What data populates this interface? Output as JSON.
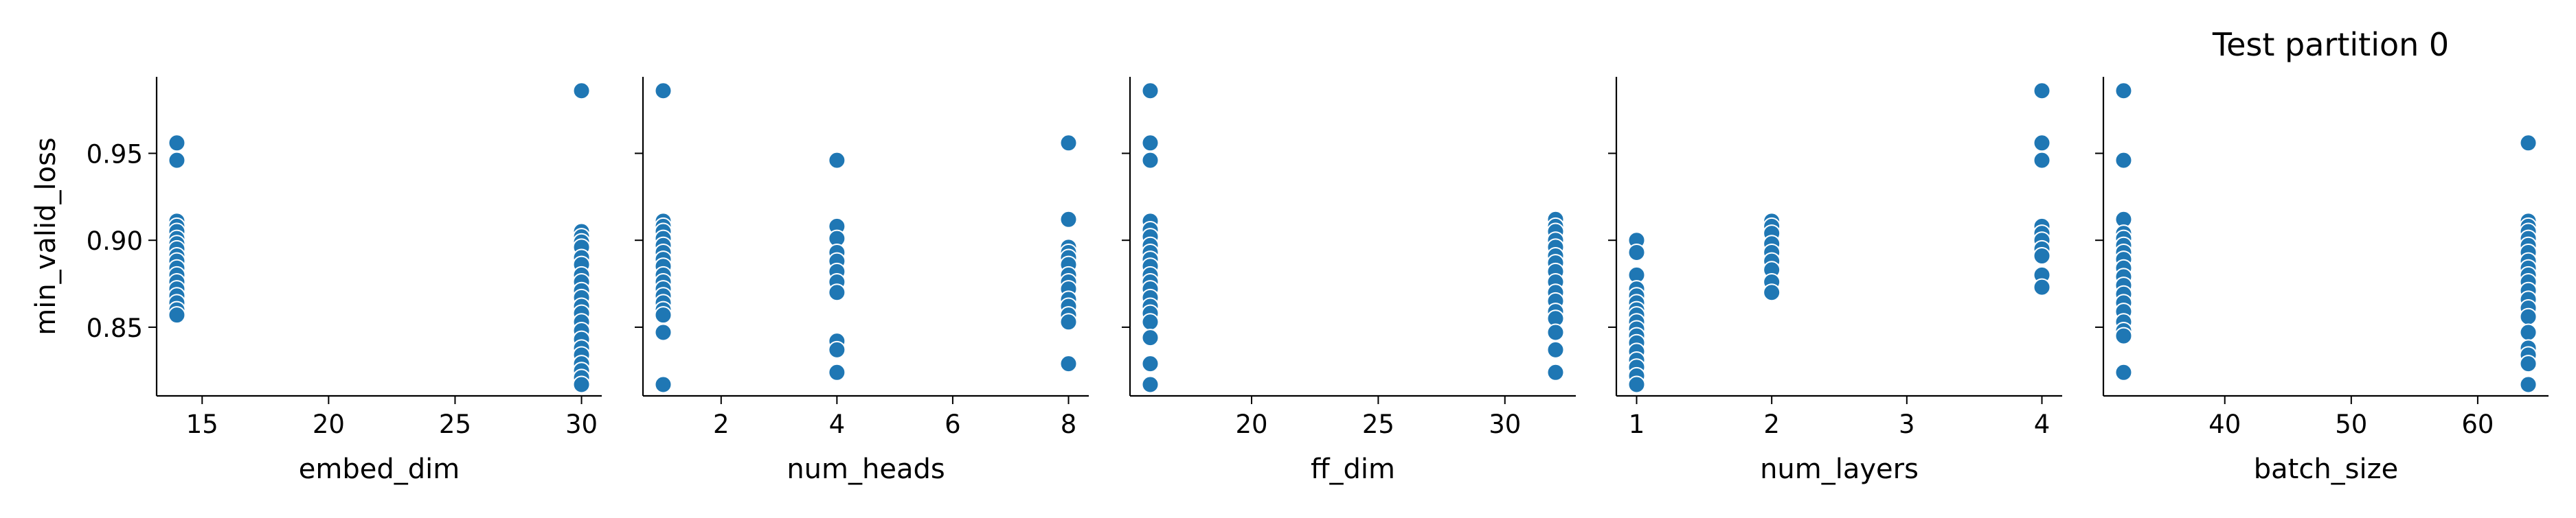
{
  "figure": {
    "title": "Test partition 0",
    "marker_color": "#1f77b4",
    "marker_edge_color": "#ffffff"
  },
  "chart_data": [
    {
      "type": "scatter",
      "xlabel": "embed_dim",
      "ylabel": "min_valid_loss",
      "xlim": [
        13.2,
        30.8
      ],
      "ylim": [
        0.8105,
        0.994
      ],
      "xticks": [
        15,
        20,
        25,
        30
      ],
      "yticks": [
        0.85,
        0.9,
        0.95
      ],
      "points": [
        [
          14,
          0.956
        ],
        [
          14,
          0.946
        ],
        [
          14,
          0.911
        ],
        [
          14,
          0.908
        ],
        [
          14,
          0.905
        ],
        [
          14,
          0.901
        ],
        [
          14,
          0.898
        ],
        [
          14,
          0.895
        ],
        [
          14,
          0.891
        ],
        [
          14,
          0.888
        ],
        [
          14,
          0.884
        ],
        [
          14,
          0.88
        ],
        [
          14,
          0.876
        ],
        [
          14,
          0.872
        ],
        [
          14,
          0.868
        ],
        [
          14,
          0.864
        ],
        [
          14,
          0.86
        ],
        [
          14,
          0.857
        ],
        [
          30,
          0.986
        ],
        [
          30,
          0.905
        ],
        [
          30,
          0.902
        ],
        [
          30,
          0.899
        ],
        [
          30,
          0.896
        ],
        [
          30,
          0.89
        ],
        [
          30,
          0.886
        ],
        [
          30,
          0.88
        ],
        [
          30,
          0.876
        ],
        [
          30,
          0.871
        ],
        [
          30,
          0.867
        ],
        [
          30,
          0.862
        ],
        [
          30,
          0.858
        ],
        [
          30,
          0.853
        ],
        [
          30,
          0.848
        ],
        [
          30,
          0.843
        ],
        [
          30,
          0.838
        ],
        [
          30,
          0.834
        ],
        [
          30,
          0.829
        ],
        [
          30,
          0.825
        ],
        [
          30,
          0.821
        ],
        [
          30,
          0.817
        ]
      ]
    },
    {
      "type": "scatter",
      "xlabel": "num_heads",
      "ylabel": "",
      "xlim": [
        0.65,
        8.35
      ],
      "ylim": [
        0.8105,
        0.994
      ],
      "xticks": [
        2,
        4,
        6,
        8
      ],
      "yticks": [
        0.85,
        0.9,
        0.95
      ],
      "points": [
        [
          1,
          0.986
        ],
        [
          1,
          0.911
        ],
        [
          1,
          0.908
        ],
        [
          1,
          0.905
        ],
        [
          1,
          0.901
        ],
        [
          1,
          0.897
        ],
        [
          1,
          0.893
        ],
        [
          1,
          0.889
        ],
        [
          1,
          0.885
        ],
        [
          1,
          0.88
        ],
        [
          1,
          0.876
        ],
        [
          1,
          0.872
        ],
        [
          1,
          0.868
        ],
        [
          1,
          0.864
        ],
        [
          1,
          0.86
        ],
        [
          1,
          0.857
        ],
        [
          1,
          0.847
        ],
        [
          1,
          0.817
        ],
        [
          4,
          0.946
        ],
        [
          4,
          0.908
        ],
        [
          4,
          0.901
        ],
        [
          4,
          0.893
        ],
        [
          4,
          0.888
        ],
        [
          4,
          0.882
        ],
        [
          4,
          0.876
        ],
        [
          4,
          0.87
        ],
        [
          4,
          0.842
        ],
        [
          4,
          0.837
        ],
        [
          4,
          0.824
        ],
        [
          8,
          0.956
        ],
        [
          8,
          0.912
        ],
        [
          8,
          0.896
        ],
        [
          8,
          0.893
        ],
        [
          8,
          0.89
        ],
        [
          8,
          0.886
        ],
        [
          8,
          0.88
        ],
        [
          8,
          0.876
        ],
        [
          8,
          0.872
        ],
        [
          8,
          0.866
        ],
        [
          8,
          0.862
        ],
        [
          8,
          0.857
        ],
        [
          8,
          0.853
        ],
        [
          8,
          0.829
        ]
      ]
    },
    {
      "type": "scatter",
      "xlabel": "ff_dim",
      "ylabel": "",
      "xlim": [
        15.2,
        32.8
      ],
      "ylim": [
        0.8105,
        0.994
      ],
      "xticks": [
        20,
        25,
        30
      ],
      "yticks": [
        0.85,
        0.9,
        0.95
      ],
      "points": [
        [
          16,
          0.986
        ],
        [
          16,
          0.956
        ],
        [
          16,
          0.946
        ],
        [
          16,
          0.911
        ],
        [
          16,
          0.906
        ],
        [
          16,
          0.902
        ],
        [
          16,
          0.897
        ],
        [
          16,
          0.893
        ],
        [
          16,
          0.889
        ],
        [
          16,
          0.885
        ],
        [
          16,
          0.88
        ],
        [
          16,
          0.876
        ],
        [
          16,
          0.872
        ],
        [
          16,
          0.867
        ],
        [
          16,
          0.862
        ],
        [
          16,
          0.858
        ],
        [
          16,
          0.853
        ],
        [
          16,
          0.844
        ],
        [
          16,
          0.829
        ],
        [
          16,
          0.817
        ],
        [
          32,
          0.912
        ],
        [
          32,
          0.908
        ],
        [
          32,
          0.905
        ],
        [
          32,
          0.9
        ],
        [
          32,
          0.896
        ],
        [
          32,
          0.891
        ],
        [
          32,
          0.887
        ],
        [
          32,
          0.882
        ],
        [
          32,
          0.876
        ],
        [
          32,
          0.87
        ],
        [
          32,
          0.865
        ],
        [
          32,
          0.859
        ],
        [
          32,
          0.855
        ],
        [
          32,
          0.847
        ],
        [
          32,
          0.837
        ],
        [
          32,
          0.824
        ]
      ]
    },
    {
      "type": "scatter",
      "xlabel": "num_layers",
      "ylabel": "",
      "xlim": [
        0.85,
        4.15
      ],
      "ylim": [
        0.8105,
        0.994
      ],
      "xticks": [
        1,
        2,
        3,
        4
      ],
      "yticks": [
        0.85,
        0.9,
        0.95
      ],
      "points": [
        [
          1,
          0.9
        ],
        [
          1,
          0.893
        ],
        [
          1,
          0.88
        ],
        [
          1,
          0.872
        ],
        [
          1,
          0.868
        ],
        [
          1,
          0.864
        ],
        [
          1,
          0.86
        ],
        [
          1,
          0.857
        ],
        [
          1,
          0.853
        ],
        [
          1,
          0.849
        ],
        [
          1,
          0.845
        ],
        [
          1,
          0.841
        ],
        [
          1,
          0.836
        ],
        [
          1,
          0.831
        ],
        [
          1,
          0.827
        ],
        [
          1,
          0.822
        ],
        [
          1,
          0.817
        ],
        [
          2,
          0.911
        ],
        [
          2,
          0.908
        ],
        [
          2,
          0.904
        ],
        [
          2,
          0.898
        ],
        [
          2,
          0.893
        ],
        [
          2,
          0.888
        ],
        [
          2,
          0.883
        ],
        [
          2,
          0.876
        ],
        [
          2,
          0.87
        ],
        [
          4,
          0.986
        ],
        [
          4,
          0.956
        ],
        [
          4,
          0.946
        ],
        [
          4,
          0.908
        ],
        [
          4,
          0.904
        ],
        [
          4,
          0.9
        ],
        [
          4,
          0.895
        ],
        [
          4,
          0.891
        ],
        [
          4,
          0.88
        ],
        [
          4,
          0.873
        ]
      ]
    },
    {
      "type": "scatter",
      "xlabel": "batch_size",
      "ylabel": "",
      "xlim": [
        30.4,
        65.6
      ],
      "ylim": [
        0.8105,
        0.994
      ],
      "xticks": [
        40,
        50,
        60
      ],
      "yticks": [
        0.85,
        0.9,
        0.95
      ],
      "points": [
        [
          32,
          0.986
        ],
        [
          32,
          0.946
        ],
        [
          32,
          0.912
        ],
        [
          32,
          0.904
        ],
        [
          32,
          0.901
        ],
        [
          32,
          0.897
        ],
        [
          32,
          0.893
        ],
        [
          32,
          0.889
        ],
        [
          32,
          0.884
        ],
        [
          32,
          0.879
        ],
        [
          32,
          0.874
        ],
        [
          32,
          0.869
        ],
        [
          32,
          0.864
        ],
        [
          32,
          0.859
        ],
        [
          32,
          0.853
        ],
        [
          32,
          0.848
        ],
        [
          32,
          0.845
        ],
        [
          32,
          0.824
        ],
        [
          64,
          0.956
        ],
        [
          64,
          0.911
        ],
        [
          64,
          0.908
        ],
        [
          64,
          0.905
        ],
        [
          64,
          0.901
        ],
        [
          64,
          0.897
        ],
        [
          64,
          0.893
        ],
        [
          64,
          0.888
        ],
        [
          64,
          0.884
        ],
        [
          64,
          0.88
        ],
        [
          64,
          0.876
        ],
        [
          64,
          0.871
        ],
        [
          64,
          0.866
        ],
        [
          64,
          0.861
        ],
        [
          64,
          0.856
        ],
        [
          64,
          0.847
        ],
        [
          64,
          0.838
        ],
        [
          64,
          0.834
        ],
        [
          64,
          0.829
        ],
        [
          64,
          0.817
        ]
      ]
    }
  ]
}
